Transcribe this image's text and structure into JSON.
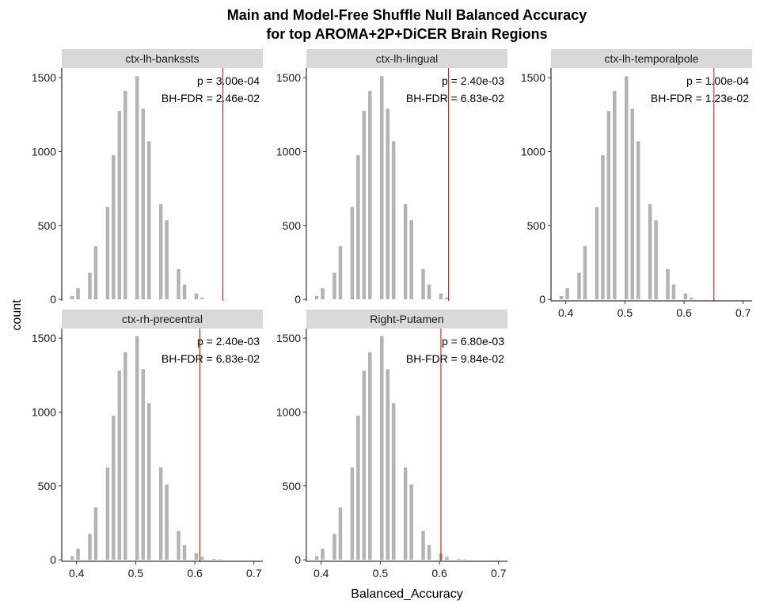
{
  "chart_data": {
    "type": "bar",
    "title": "Main and Model-Free Shuffle Null Balanced Accuracy",
    "subtitle": "for top AROMA+2P+DiCER Brain Regions",
    "xlabel": "Balanced_Accuracy",
    "ylabel": "count",
    "xlim": [
      0.375,
      0.715
    ],
    "ylim": [
      -10,
      1565
    ],
    "x_ticks": [
      "0.4",
      "0.5",
      "0.6",
      "0.7"
    ],
    "y_ticks": [
      "0",
      "500",
      "1000",
      "1500"
    ],
    "bar_color": "#b3b3b3",
    "line_color": "#cc0000",
    "panels": [
      {
        "label": "ctx-lh-bankssts",
        "observed": 0.6475,
        "annotation_p": "p = 3.00e-04",
        "annotation_fdr": "BH-FDR = 2.46e-02",
        "bins": [
          0.3925,
          0.4025,
          0.4225,
          0.4325,
          0.4525,
          0.4625,
          0.4725,
          0.4825,
          0.5025,
          0.5125,
          0.5225,
          0.5425,
          0.5525,
          0.5725,
          0.5825,
          0.6025,
          0.6125
        ],
        "counts": [
          22,
          75,
          180,
          360,
          625,
          975,
          1275,
          1410,
          1510,
          1290,
          1070,
          645,
          535,
          205,
          100,
          40,
          12
        ]
      },
      {
        "label": "ctx-lh-lingual",
        "observed": 0.6155,
        "annotation_p": "p = 2.40e-03",
        "annotation_fdr": "BH-FDR = 6.83e-02",
        "bins": [
          0.3925,
          0.4025,
          0.4225,
          0.4325,
          0.4525,
          0.4625,
          0.4725,
          0.4825,
          0.5025,
          0.5125,
          0.5225,
          0.5425,
          0.5525,
          0.5725,
          0.5825,
          0.6025,
          0.6125
        ],
        "counts": [
          22,
          75,
          180,
          360,
          625,
          975,
          1275,
          1410,
          1510,
          1290,
          1070,
          645,
          535,
          205,
          100,
          40,
          12
        ]
      },
      {
        "label": "ctx-lh-temporalpole",
        "observed": 0.6505,
        "annotation_p": "p = 1.00e-04",
        "annotation_fdr": "BH-FDR = 1.23e-02",
        "bins": [
          0.3925,
          0.4025,
          0.4225,
          0.4325,
          0.4525,
          0.4625,
          0.4725,
          0.4825,
          0.5025,
          0.5125,
          0.5225,
          0.5425,
          0.5525,
          0.5725,
          0.5825,
          0.6025,
          0.6125
        ],
        "counts": [
          22,
          75,
          180,
          360,
          625,
          975,
          1275,
          1410,
          1510,
          1290,
          1070,
          645,
          535,
          205,
          100,
          40,
          12
        ]
      },
      {
        "label": "ctx-rh-precentral",
        "observed": 0.6085,
        "annotation_p": "p = 2.40e-03",
        "annotation_fdr": "BH-FDR = 6.83e-02",
        "bins": [
          0.3925,
          0.4025,
          0.4225,
          0.4325,
          0.4525,
          0.4625,
          0.4725,
          0.4825,
          0.5025,
          0.5125,
          0.5225,
          0.5425,
          0.5525,
          0.5725,
          0.5825,
          0.6025,
          0.6125,
          0.6325,
          0.6425
        ],
        "counts": [
          25,
          75,
          175,
          355,
          625,
          975,
          1280,
          1405,
          1515,
          1290,
          1060,
          625,
          510,
          195,
          100,
          45,
          20,
          5,
          4
        ]
      },
      {
        "label": "Right-Putamen",
        "observed": 0.6025,
        "annotation_p": "p = 6.80e-03",
        "annotation_fdr": "BH-FDR = 9.84e-02",
        "bins": [
          0.3925,
          0.4025,
          0.4225,
          0.4325,
          0.4525,
          0.4625,
          0.4725,
          0.4825,
          0.5025,
          0.5125,
          0.5225,
          0.5425,
          0.5525,
          0.5725,
          0.5825,
          0.6025,
          0.6125,
          0.6325,
          0.6425
        ],
        "counts": [
          25,
          75,
          175,
          355,
          625,
          975,
          1280,
          1405,
          1515,
          1290,
          1060,
          625,
          510,
          195,
          100,
          45,
          20,
          5,
          4
        ]
      }
    ]
  }
}
